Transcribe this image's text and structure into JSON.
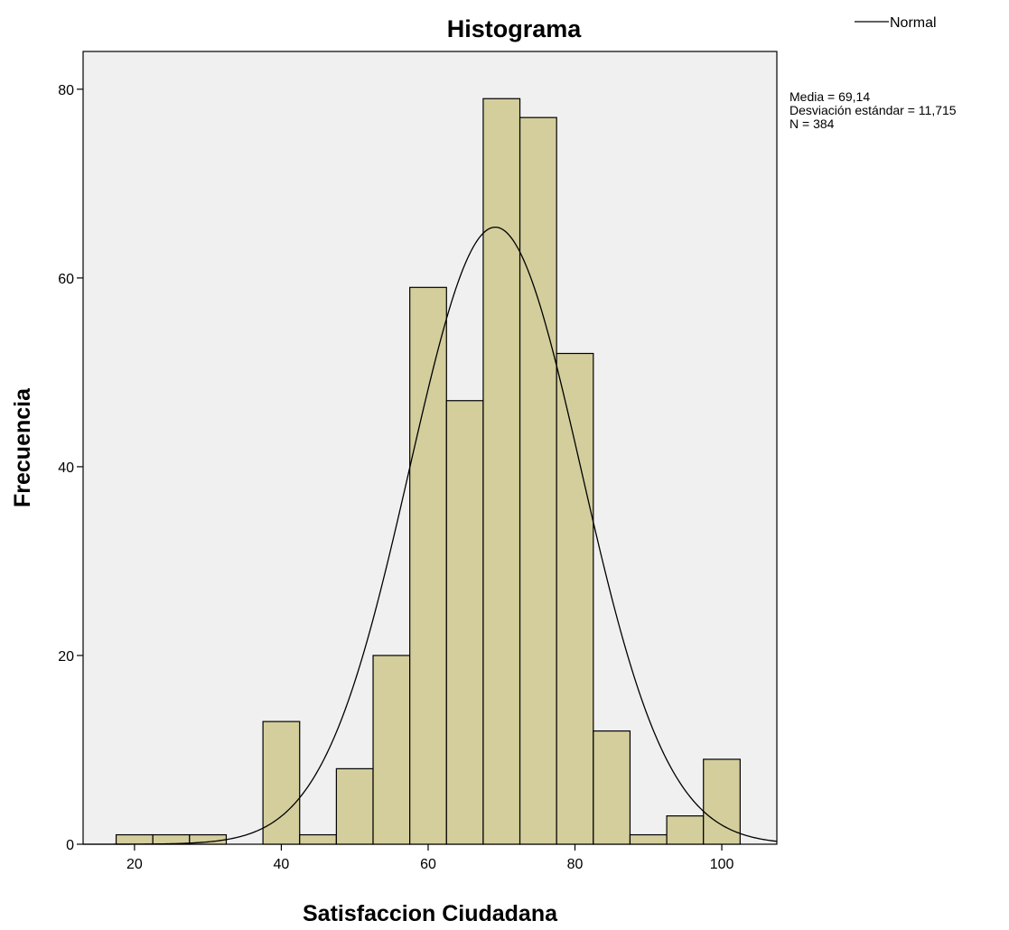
{
  "chart_data": {
    "type": "bar",
    "title": "Histograma",
    "xlabel": "Satisfaccion Ciudadana",
    "ylabel": "Frecuencia",
    "bin_width": 5,
    "bins": [
      {
        "start": 17.5,
        "end": 22.5,
        "count": 1
      },
      {
        "start": 22.5,
        "end": 27.5,
        "count": 1
      },
      {
        "start": 27.5,
        "end": 32.5,
        "count": 1
      },
      {
        "start": 37.5,
        "end": 42.5,
        "count": 13
      },
      {
        "start": 42.5,
        "end": 47.5,
        "count": 1
      },
      {
        "start": 47.5,
        "end": 52.5,
        "count": 8
      },
      {
        "start": 52.5,
        "end": 57.5,
        "count": 20
      },
      {
        "start": 57.5,
        "end": 62.5,
        "count": 59
      },
      {
        "start": 62.5,
        "end": 67.5,
        "count": 47
      },
      {
        "start": 67.5,
        "end": 72.5,
        "count": 79
      },
      {
        "start": 72.5,
        "end": 77.5,
        "count": 77
      },
      {
        "start": 77.5,
        "end": 82.5,
        "count": 52
      },
      {
        "start": 82.5,
        "end": 87.5,
        "count": 12
      },
      {
        "start": 87.5,
        "end": 92.5,
        "count": 1
      },
      {
        "start": 92.5,
        "end": 97.5,
        "count": 3
      },
      {
        "start": 97.5,
        "end": 102.5,
        "count": 9
      }
    ],
    "xlim": [
      13,
      107.5
    ],
    "ylim": [
      0,
      84
    ],
    "x_ticks": [
      20,
      40,
      60,
      80,
      100
    ],
    "y_ticks": [
      0,
      20,
      40,
      60,
      80
    ],
    "normal_curve": {
      "mean": 69.14,
      "sd": 11.715,
      "n": 384
    },
    "legend": {
      "entries": [
        "Normal"
      ],
      "position": "top-right"
    },
    "stats": [
      "Media = 69,14",
      "Desviación estándar = 11,715",
      "N = 384"
    ],
    "grid": false,
    "colors": {
      "bar_fill": "#d3ce9c",
      "bar_stroke": "#000000",
      "plot_bg": "#f0f0f0",
      "curve": "#000000"
    }
  }
}
